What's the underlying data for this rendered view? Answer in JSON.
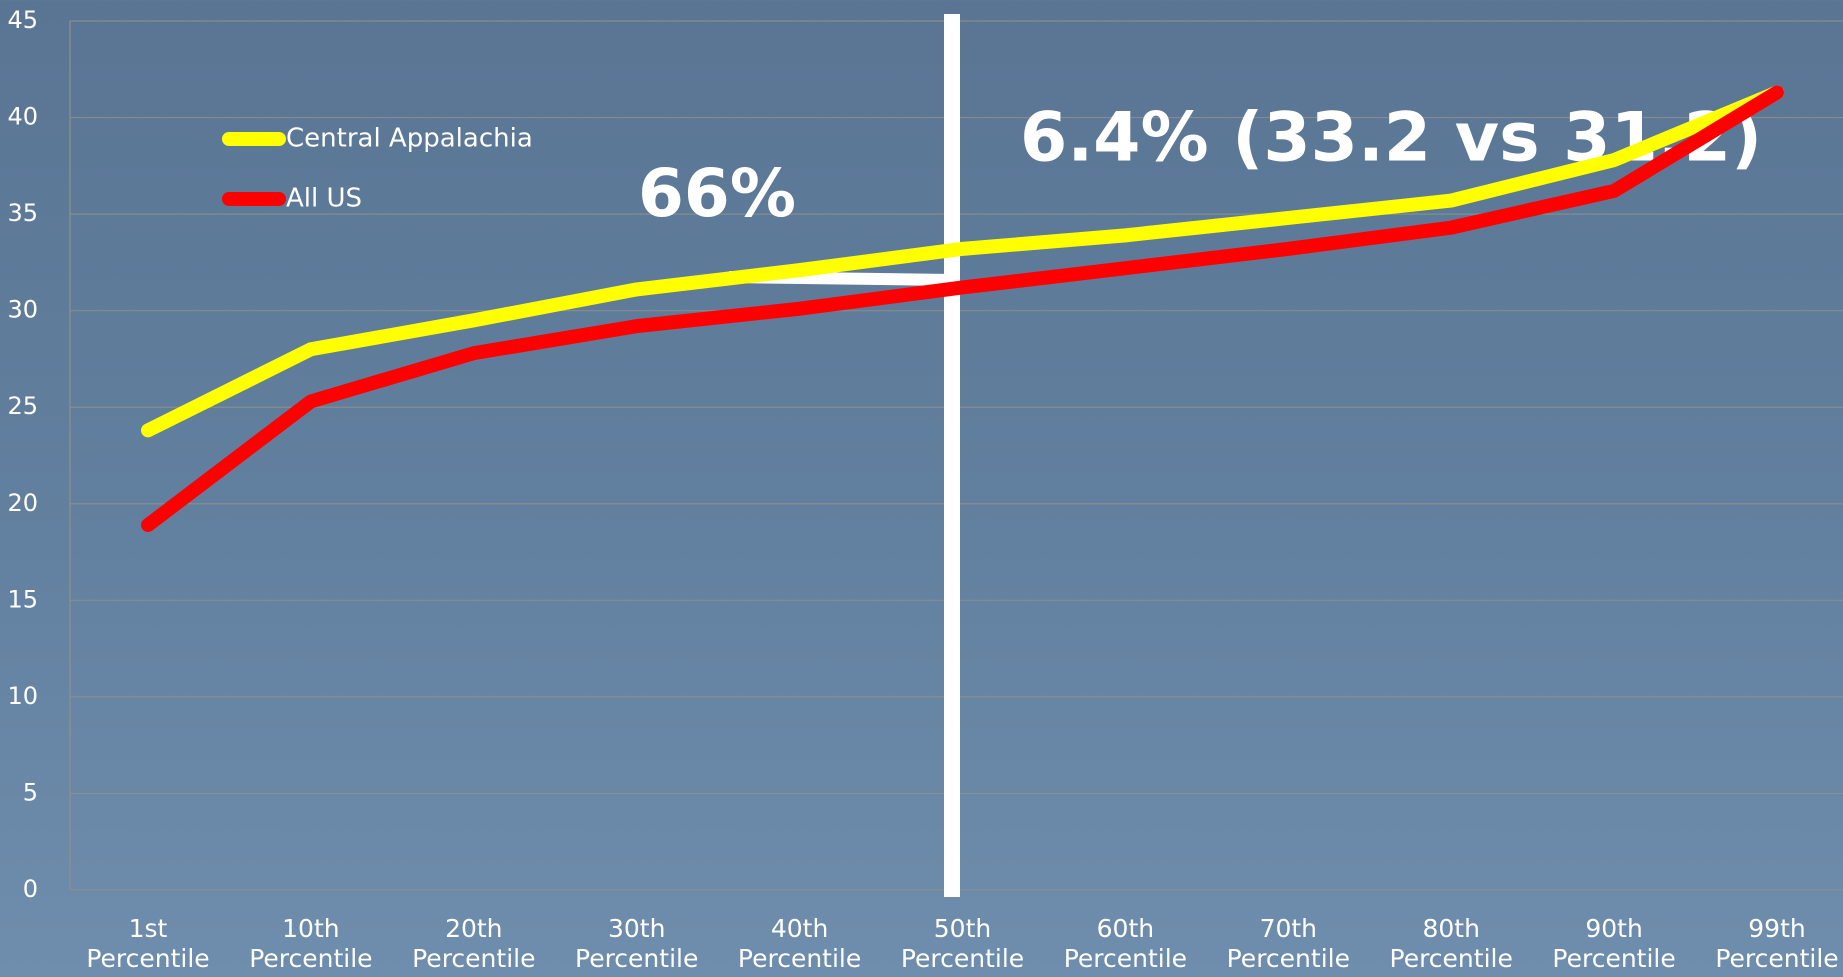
{
  "chart_data": {
    "type": "line",
    "categories": [
      "1st Percentile",
      "10th Percentile",
      "20th Percentile",
      "30th Percentile",
      "40th Percentile",
      "50th Percentile",
      "60th Percentile",
      "70th Percentile",
      "80th Percentile",
      "90th Percentile",
      "99th Percentile"
    ],
    "series": [
      {
        "name": "Central Appalachia",
        "color": "#ffff00",
        "values": [
          23.8,
          28.0,
          29.5,
          31.1,
          32.1,
          33.2,
          33.9,
          34.8,
          35.7,
          37.8,
          41.3
        ]
      },
      {
        "name": "All US",
        "color": "#ff0000",
        "values": [
          18.9,
          25.3,
          27.8,
          29.2,
          30.1,
          31.2,
          32.2,
          33.2,
          34.3,
          36.2,
          41.3
        ]
      }
    ],
    "ylim": [
      0,
      45
    ],
    "yticks": [
      0,
      5,
      10,
      15,
      20,
      25,
      30,
      35,
      40,
      45
    ],
    "grid": true,
    "annotations": [
      "66%",
      "6.4% (33.2 vs 31.2)"
    ]
  }
}
